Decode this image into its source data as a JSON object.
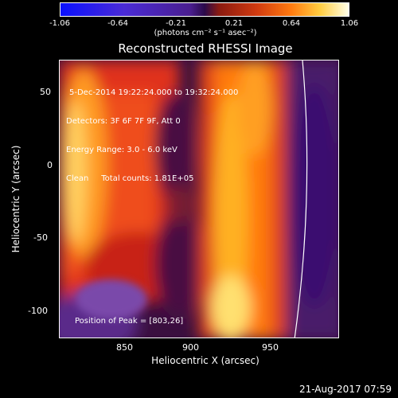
{
  "colorbar": {
    "ticks": [
      "-1.06",
      "-0.64",
      "-0.21",
      "0.21",
      "0.64",
      "1.06"
    ],
    "unit": "(photons cm⁻² s⁻¹ asec⁻²)"
  },
  "plot": {
    "title": "Reconstructed RHESSI Image",
    "info_lines": [
      "5-Dec-2014 19:22:24.000 to 19:32:24.000",
      "Detectors: 3F 6F 7F 9F, Att 0",
      "Energy Range: 3.0 - 6.0 keV",
      "Clean     Total counts: 1.81E+05"
    ],
    "peak_label": "Position of Peak = [803,26]",
    "xlabel": "Heliocentric X (arcsec)",
    "ylabel": "Heliocentric Y (arcsec)",
    "xticks": [
      "850",
      "900",
      "950"
    ],
    "yticks": [
      "50",
      "0",
      "-50",
      "-100"
    ]
  },
  "timestamp": "21-Aug-2017 07:59"
}
